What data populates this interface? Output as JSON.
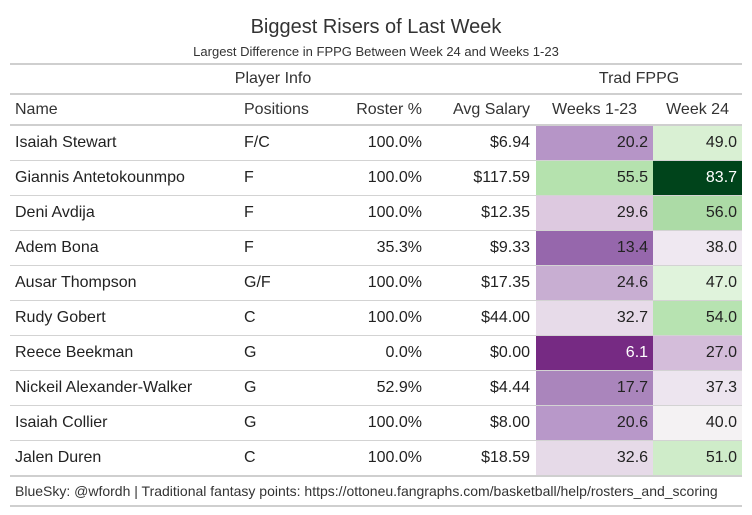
{
  "title": "Biggest Risers of Last Week",
  "subtitle": "Largest Difference in FPPG Between Week 24 and Weeks 1-23",
  "groups": {
    "player_info": "Player Info",
    "trad_fppg": "Trad FPPG"
  },
  "columns": {
    "name": "Name",
    "positions": "Positions",
    "roster": "Roster %",
    "salary": "Avg Salary",
    "weeks": "Weeks 1-23",
    "week24": "Week 24"
  },
  "rows": [
    {
      "name": "Isaiah Stewart",
      "pos": "F/C",
      "roster": "100.0%",
      "salary": "$6.94",
      "weeks": "20.2",
      "week24": "49.0",
      "weeks_color": "#b695c7",
      "week24_color": "#d9f0d3",
      "weeks_text": "#222",
      "week24_text": "#222"
    },
    {
      "name": "Giannis Antetokounmpo",
      "pos": "F",
      "roster": "100.0%",
      "salary": "$117.59",
      "weeks": "55.5",
      "week24": "83.7",
      "weeks_color": "#b5e2ae",
      "week24_color": "#00441b",
      "weeks_text": "#222",
      "week24_text": "#ffffff"
    },
    {
      "name": "Deni Avdija",
      "pos": "F",
      "roster": "100.0%",
      "salary": "$12.35",
      "weeks": "29.6",
      "week24": "56.0",
      "weeks_color": "#ddc9e0",
      "week24_color": "#acdba6",
      "weeks_text": "#222",
      "week24_text": "#222"
    },
    {
      "name": "Adem Bona",
      "pos": "F",
      "roster": "35.3%",
      "salary": "$9.33",
      "weeks": "13.4",
      "week24": "38.0",
      "weeks_color": "#9667ac",
      "week24_color": "#efe8f1",
      "weeks_text": "#222",
      "week24_text": "#222"
    },
    {
      "name": "Ausar Thompson",
      "pos": "G/F",
      "roster": "100.0%",
      "salary": "$17.35",
      "weeks": "24.6",
      "week24": "47.0",
      "weeks_color": "#c8aed2",
      "week24_color": "#e0f3dc",
      "weeks_text": "#222",
      "week24_text": "#222"
    },
    {
      "name": "Rudy Gobert",
      "pos": "C",
      "roster": "100.0%",
      "salary": "$44.00",
      "weeks": "32.7",
      "week24": "54.0",
      "weeks_color": "#e7dbe9",
      "week24_color": "#b7e3b1",
      "weeks_text": "#222",
      "week24_text": "#222"
    },
    {
      "name": "Reece Beekman",
      "pos": "G",
      "roster": "0.0%",
      "salary": "$0.00",
      "weeks": "6.1",
      "week24": "27.0",
      "weeks_color": "#762a83",
      "week24_color": "#d4bdda",
      "weeks_text": "#ffffff",
      "week24_text": "#222"
    },
    {
      "name": "Nickeil Alexander-Walker",
      "pos": "G",
      "roster": "52.9%",
      "salary": "$4.44",
      "weeks": "17.7",
      "week24": "37.3",
      "weeks_color": "#aa85bc",
      "week24_color": "#ede5ef",
      "weeks_text": "#222",
      "week24_text": "#222"
    },
    {
      "name": "Isaiah Collier",
      "pos": "G",
      "roster": "100.0%",
      "salary": "$8.00",
      "weeks": "20.6",
      "week24": "40.0",
      "weeks_color": "#b898c9",
      "week24_color": "#f4f2f3",
      "weeks_text": "#222",
      "week24_text": "#222"
    },
    {
      "name": "Jalen Duren",
      "pos": "C",
      "roster": "100.0%",
      "salary": "$18.59",
      "weeks": "32.6",
      "week24": "51.0",
      "weeks_color": "#e6dae8",
      "week24_color": "#cfecc9",
      "weeks_text": "#222",
      "week24_text": "#222"
    }
  ],
  "footer": "BlueSky: @wfordh | Traditional fantasy points: https://ottoneu.fangraphs.com/basketball/help/rosters_and_scoring"
}
